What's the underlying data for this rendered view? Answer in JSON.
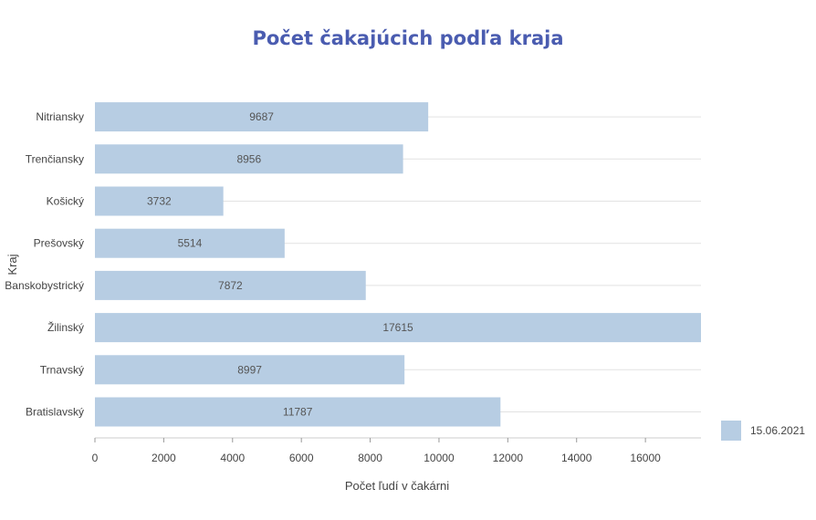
{
  "colors": {
    "title": "#4a5cb0",
    "bar": "#b7cde3",
    "text": "#444444",
    "value_text": "#555555"
  },
  "chart_data": {
    "type": "bar",
    "orientation": "horizontal",
    "title": "Počet čakajúcich podľa kraja",
    "xlabel": "Počet ľudí v čakárni",
    "ylabel": "Kraj",
    "categories": [
      "Nitriansky",
      "Trenčiansky",
      "Košický",
      "Prešovský",
      "Banskobystrický",
      "Žilinský",
      "Trnavský",
      "Bratislavský"
    ],
    "series": [
      {
        "name": "15.06.2021",
        "values": [
          9687,
          8956,
          3732,
          5514,
          7872,
          17615,
          8997,
          11787
        ]
      }
    ],
    "xlim": [
      0,
      17615
    ],
    "xticks": [
      0,
      2000,
      4000,
      6000,
      8000,
      10000,
      12000,
      14000,
      16000
    ],
    "grid": "horizontal",
    "legend_position": "bottom-right",
    "data_labels": true
  }
}
